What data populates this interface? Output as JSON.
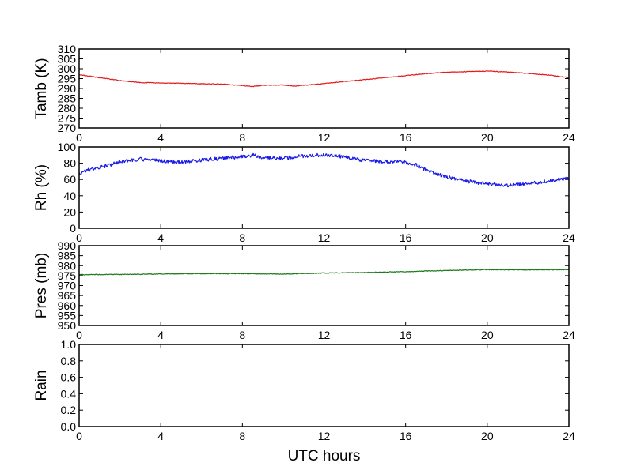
{
  "chart_data": [
    {
      "type": "line",
      "title": "",
      "xlabel": "",
      "ylabel": "Tamb (K)",
      "xlim": [
        0,
        24
      ],
      "ylim": [
        270,
        310
      ],
      "xticks": [
        0,
        4,
        8,
        12,
        16,
        20,
        24
      ],
      "yticks": [
        270,
        275,
        280,
        285,
        290,
        295,
        300,
        305,
        310
      ],
      "grid": false,
      "color": "#e41a1c",
      "series": [
        {
          "x": [
            0,
            1,
            2,
            3,
            4,
            5,
            6,
            7,
            8,
            8.5,
            9,
            10,
            10.5,
            11,
            12,
            13,
            14,
            15,
            16,
            17,
            18,
            19,
            20,
            21,
            22,
            23,
            24
          ],
          "values": [
            297,
            295.5,
            294,
            293,
            292.8,
            292.6,
            292.4,
            292.2,
            291.5,
            291,
            291.6,
            291.8,
            291.2,
            291.6,
            292.5,
            293.5,
            294.5,
            295.5,
            296.5,
            297.5,
            298.2,
            298.5,
            298.8,
            298.3,
            297.6,
            296.8,
            295.5
          ]
        }
      ]
    },
    {
      "type": "line",
      "title": "",
      "xlabel": "",
      "ylabel": "Rh (%)",
      "xlim": [
        0,
        24
      ],
      "ylim": [
        0,
        100
      ],
      "xticks": [
        0,
        4,
        8,
        12,
        16,
        20,
        24
      ],
      "yticks": [
        0,
        20,
        40,
        60,
        80,
        100
      ],
      "grid": false,
      "color": "#1a1ae6",
      "series": [
        {
          "x": [
            0,
            0.5,
            1,
            1.5,
            2,
            3,
            4,
            5,
            6,
            7,
            8,
            8.5,
            9,
            10,
            11,
            12,
            13,
            14,
            15,
            16,
            16.5,
            17,
            18,
            19,
            20,
            21,
            22,
            23,
            24
          ],
          "values": [
            67,
            72,
            75,
            78,
            82,
            85,
            83,
            81,
            84,
            86,
            88,
            90,
            87,
            86,
            89,
            90,
            88,
            83,
            82,
            81,
            78,
            72,
            63,
            58,
            54,
            53,
            55,
            58,
            62
          ]
        }
      ]
    },
    {
      "type": "line",
      "title": "",
      "xlabel": "",
      "ylabel": "Pres (mb)",
      "xlim": [
        0,
        24
      ],
      "ylim": [
        950,
        990
      ],
      "xticks": [
        0,
        4,
        8,
        12,
        16,
        20,
        24
      ],
      "yticks": [
        950,
        955,
        960,
        965,
        970,
        975,
        980,
        985,
        990
      ],
      "grid": false,
      "color": "#1a7a1a",
      "series": [
        {
          "x": [
            0,
            2,
            4,
            6,
            8,
            10,
            12,
            14,
            16,
            18,
            20,
            22,
            24
          ],
          "values": [
            975.5,
            975.6,
            975.8,
            976,
            976,
            975.8,
            976.3,
            976.6,
            977,
            977.6,
            978,
            977.9,
            978
          ]
        }
      ]
    },
    {
      "type": "line",
      "title": "",
      "xlabel": "UTC hours",
      "ylabel": "Rain",
      "xlim": [
        0,
        24
      ],
      "ylim": [
        0,
        1
      ],
      "xticks": [
        0,
        4,
        8,
        12,
        16,
        20,
        24
      ],
      "yticks": [
        0.0,
        0.2,
        0.4,
        0.6,
        0.8,
        1.0
      ],
      "ytick_labels": [
        "0.0",
        "0.2",
        "0.4",
        "0.6",
        "0.8",
        "1.0"
      ],
      "grid": false,
      "color": "#000000",
      "series": []
    }
  ]
}
